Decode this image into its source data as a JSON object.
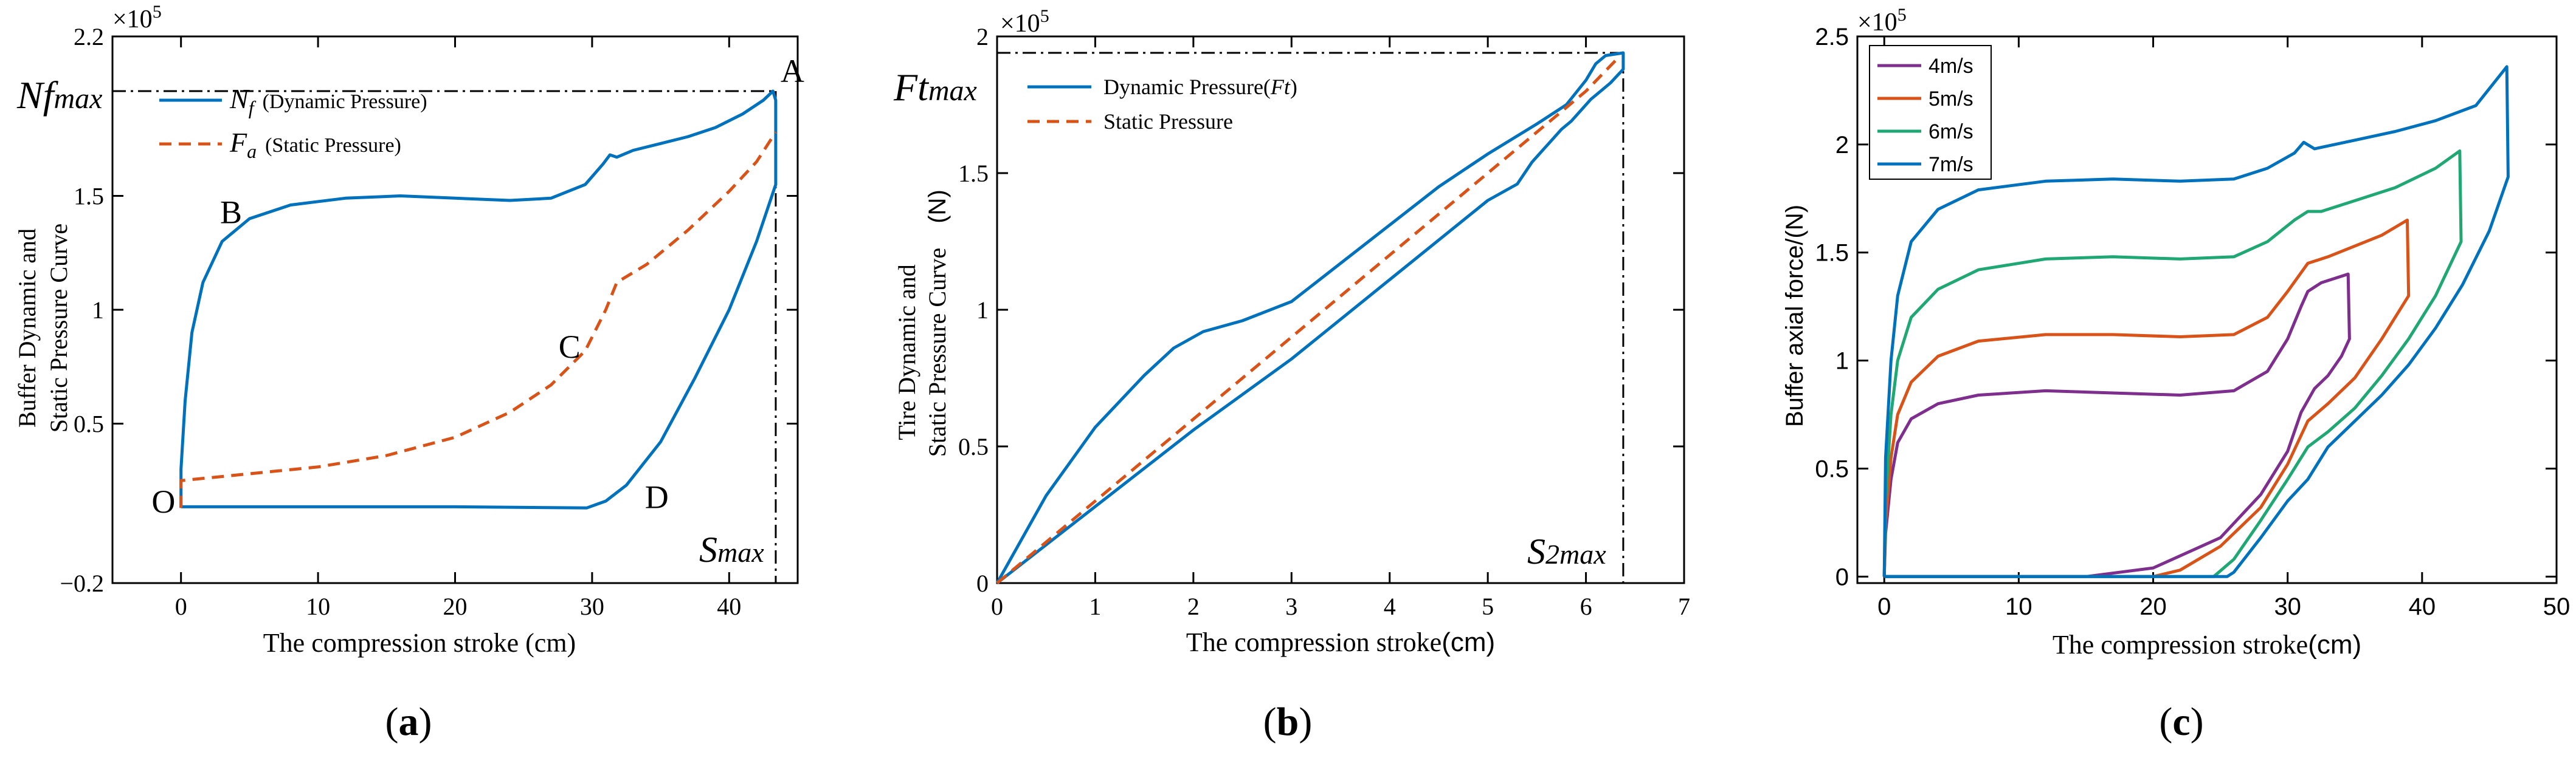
{
  "chart_data": [
    {
      "id": "a",
      "type": "line",
      "panel_label": "a",
      "xlabel": "The compression stroke (cm)",
      "ylabel_line1": "Buffer Dynamic and",
      "ylabel_line2": "Static Pressure Curve",
      "y_exponent": "×10",
      "y_exponent_power": "5",
      "xlim": [
        -5,
        45
      ],
      "ylim": [
        -0.2,
        2.2
      ],
      "xticks": [
        0,
        10,
        20,
        30,
        40
      ],
      "xtick_labels": [
        "0",
        "10",
        "20",
        "30",
        "40"
      ],
      "yticks": [
        -0.2,
        0.5,
        1,
        1.5,
        2.2
      ],
      "ytick_labels": [
        "−0.2",
        "0.5",
        "1",
        "1.5",
        "2.2"
      ],
      "series": [
        {
          "name": "N_f (Dynamic Pressure)",
          "legend_symbol": "N",
          "legend_sub": "f",
          "legend_text": "(Dynamic Pressure)",
          "color": "#0072BD",
          "dash": "solid",
          "points": [
            [
              0,
              0.13
            ],
            [
              0,
              0.3
            ],
            [
              0.3,
              0.6
            ],
            [
              0.8,
              0.9
            ],
            [
              1.6,
              1.12
            ],
            [
              3,
              1.3
            ],
            [
              5,
              1.4
            ],
            [
              8,
              1.46
            ],
            [
              12,
              1.49
            ],
            [
              16,
              1.5
            ],
            [
              20,
              1.49
            ],
            [
              24,
              1.48
            ],
            [
              27,
              1.49
            ],
            [
              29.5,
              1.55
            ],
            [
              30.8,
              1.64
            ],
            [
              31.3,
              1.68
            ],
            [
              31.8,
              1.67
            ],
            [
              33,
              1.7
            ],
            [
              35,
              1.73
            ],
            [
              37,
              1.76
            ],
            [
              39,
              1.8
            ],
            [
              41,
              1.86
            ],
            [
              42.5,
              1.92
            ],
            [
              43.2,
              1.96
            ],
            [
              43.4,
              1.92
            ],
            [
              43.4,
              1.55
            ],
            [
              42,
              1.3
            ],
            [
              40,
              1.0
            ],
            [
              37.5,
              0.7
            ],
            [
              35,
              0.42
            ],
            [
              32.5,
              0.23
            ],
            [
              31,
              0.16
            ],
            [
              29.6,
              0.13
            ],
            [
              20,
              0.135
            ],
            [
              10,
              0.135
            ],
            [
              0,
              0.135
            ]
          ]
        },
        {
          "name": "F_a (Static Pressure)",
          "legend_symbol": "F",
          "legend_sub": "a",
          "legend_text": "(Static Pressure)",
          "color": "#D95319",
          "dash": "dashed",
          "points": [
            [
              0,
              0.13
            ],
            [
              0,
              0.25
            ],
            [
              5,
              0.28
            ],
            [
              10,
              0.31
            ],
            [
              15,
              0.36
            ],
            [
              20,
              0.44
            ],
            [
              24,
              0.55
            ],
            [
              27,
              0.67
            ],
            [
              29.5,
              0.82
            ],
            [
              31,
              1.0
            ],
            [
              31.8,
              1.12
            ],
            [
              34,
              1.2
            ],
            [
              37,
              1.35
            ],
            [
              40,
              1.52
            ],
            [
              42,
              1.65
            ],
            [
              43.4,
              1.78
            ]
          ]
        }
      ],
      "annotations": [
        {
          "text": "A",
          "x": 43.4,
          "y": 2.0
        },
        {
          "text": "B",
          "x": 2.5,
          "y": 1.38
        },
        {
          "text": "C",
          "x": 27.2,
          "y": 0.79
        },
        {
          "text": "D",
          "x": 33.5,
          "y": 0.13
        },
        {
          "text": "O",
          "x": -2.5,
          "y": 0.11
        }
      ],
      "ref_y_label": "Nf",
      "ref_y_label_sub": "max",
      "ref_y_value": 1.96,
      "ref_x_label": "S",
      "ref_x_label_sub": "max",
      "ref_x_value": 43.4
    },
    {
      "id": "b",
      "type": "line",
      "panel_label": "b",
      "xlabel": "The compression stroke",
      "xlabel_unit": "(cm)",
      "ylabel_line1": "Tire Dynamic and",
      "ylabel_line2": "Static Pressure Curve",
      "ylabel_unit": "(N)",
      "y_exponent": "×10",
      "y_exponent_power": "5",
      "xlim": [
        0,
        7
      ],
      "ylim": [
        0,
        2
      ],
      "xticks": [
        0,
        1,
        2,
        3,
        4,
        5,
        6,
        7
      ],
      "xtick_labels": [
        "0",
        "1",
        "2",
        "3",
        "4",
        "5",
        "6",
        "7"
      ],
      "yticks": [
        0,
        0.5,
        1,
        1.5,
        2
      ],
      "ytick_labels": [
        "0",
        "0.5",
        "1",
        "1.5",
        "2"
      ],
      "series": [
        {
          "name": "Dynamic Pressure(Ft)",
          "legend_text": "Dynamic Pressure(",
          "legend_symbol": "Ft",
          "legend_close": ")",
          "color": "#0072BD",
          "dash": "solid",
          "points": [
            [
              0,
              0
            ],
            [
              0.5,
              0.32
            ],
            [
              1,
              0.57
            ],
            [
              1.5,
              0.76
            ],
            [
              1.8,
              0.86
            ],
            [
              2.1,
              0.92
            ],
            [
              2.5,
              0.96
            ],
            [
              3,
              1.03
            ],
            [
              3.5,
              1.17
            ],
            [
              4,
              1.31
            ],
            [
              4.5,
              1.45
            ],
            [
              5,
              1.57
            ],
            [
              5.5,
              1.68
            ],
            [
              5.8,
              1.75
            ],
            [
              6,
              1.84
            ],
            [
              6.1,
              1.9
            ],
            [
              6.2,
              1.93
            ],
            [
              6.38,
              1.94
            ],
            [
              6.38,
              1.88
            ],
            [
              6.25,
              1.83
            ],
            [
              6.15,
              1.8
            ],
            [
              6.05,
              1.77
            ],
            [
              5.95,
              1.73
            ],
            [
              5.85,
              1.69
            ],
            [
              5.75,
              1.66
            ],
            [
              5.65,
              1.62
            ],
            [
              5.55,
              1.58
            ],
            [
              5.45,
              1.54
            ],
            [
              5.3,
              1.46
            ],
            [
              5.1,
              1.42
            ],
            [
              5,
              1.4
            ],
            [
              4,
              1.11
            ],
            [
              3,
              0.82
            ],
            [
              2,
              0.56
            ],
            [
              1,
              0.28
            ],
            [
              0,
              0
            ]
          ]
        },
        {
          "name": "Static Pressure",
          "legend_text": "Static Pressure",
          "color": "#D95319",
          "dash": "dashed",
          "points": [
            [
              0,
              0
            ],
            [
              1,
              0.3
            ],
            [
              2,
              0.6
            ],
            [
              3,
              0.9
            ],
            [
              4,
              1.2
            ],
            [
              5,
              1.5
            ],
            [
              6,
              1.8
            ],
            [
              6.35,
              1.93
            ]
          ]
        }
      ],
      "ref_y_label": "Ft",
      "ref_y_label_sub": "max",
      "ref_y_value": 1.94,
      "ref_x_label": "S",
      "ref_x_label_sub": "2max",
      "ref_x_value": 6.38
    },
    {
      "id": "c",
      "type": "line",
      "panel_label": "c",
      "xlabel": "The compression stroke",
      "xlabel_unit": "(cm)",
      "ylabel": "Buffer axial force/(N)",
      "y_exponent": "×10",
      "y_exponent_power": "5",
      "xlim": [
        -2,
        50
      ],
      "ylim": [
        -0.03,
        2.5
      ],
      "xticks": [
        0,
        10,
        20,
        30,
        40,
        50
      ],
      "xtick_labels": [
        "0",
        "10",
        "20",
        "30",
        "40",
        "50"
      ],
      "yticks": [
        0,
        0.5,
        1,
        1.5,
        2,
        2.5
      ],
      "ytick_labels": [
        "0",
        "0.5",
        "1",
        "1.5",
        "2",
        "2.5"
      ],
      "series": [
        {
          "name": "4m/s",
          "color": "#7E2F8E",
          "points": [
            [
              0,
              0
            ],
            [
              0.1,
              0.2
            ],
            [
              0.5,
              0.45
            ],
            [
              1,
              0.62
            ],
            [
              2,
              0.73
            ],
            [
              4,
              0.8
            ],
            [
              7,
              0.84
            ],
            [
              12,
              0.86
            ],
            [
              17,
              0.85
            ],
            [
              22,
              0.84
            ],
            [
              26,
              0.86
            ],
            [
              28.5,
              0.95
            ],
            [
              30,
              1.1
            ],
            [
              31,
              1.25
            ],
            [
              31.5,
              1.32
            ],
            [
              32.5,
              1.36
            ],
            [
              33.5,
              1.38
            ],
            [
              34.5,
              1.4
            ],
            [
              34.6,
              1.1
            ],
            [
              34,
              1.02
            ],
            [
              33,
              0.93
            ],
            [
              32,
              0.87
            ],
            [
              31,
              0.76
            ],
            [
              30,
              0.58
            ],
            [
              28,
              0.38
            ],
            [
              25,
              0.18
            ],
            [
              20,
              0.04
            ],
            [
              15,
              0.0
            ],
            [
              0,
              0
            ]
          ]
        },
        {
          "name": "5m/s",
          "color": "#D95319",
          "points": [
            [
              0,
              0
            ],
            [
              0.1,
              0.25
            ],
            [
              0.5,
              0.55
            ],
            [
              1,
              0.75
            ],
            [
              2,
              0.9
            ],
            [
              4,
              1.02
            ],
            [
              7,
              1.09
            ],
            [
              12,
              1.12
            ],
            [
              17,
              1.12
            ],
            [
              22,
              1.11
            ],
            [
              26,
              1.12
            ],
            [
              28.5,
              1.2
            ],
            [
              30,
              1.32
            ],
            [
              31.5,
              1.45
            ],
            [
              33,
              1.48
            ],
            [
              35,
              1.53
            ],
            [
              37,
              1.58
            ],
            [
              38.9,
              1.65
            ],
            [
              39,
              1.3
            ],
            [
              37,
              1.1
            ],
            [
              35,
              0.92
            ],
            [
              33,
              0.8
            ],
            [
              31.5,
              0.72
            ],
            [
              30,
              0.52
            ],
            [
              28,
              0.32
            ],
            [
              25,
              0.14
            ],
            [
              22,
              0.03
            ],
            [
              20,
              0
            ],
            [
              0,
              0
            ]
          ]
        },
        {
          "name": "6m/s",
          "color": "#1FA774",
          "points": [
            [
              0,
              0
            ],
            [
              0.1,
              0.35
            ],
            [
              0.5,
              0.75
            ],
            [
              1,
              1.0
            ],
            [
              2,
              1.2
            ],
            [
              4,
              1.33
            ],
            [
              7,
              1.42
            ],
            [
              12,
              1.47
            ],
            [
              17,
              1.48
            ],
            [
              22,
              1.47
            ],
            [
              26,
              1.48
            ],
            [
              28.5,
              1.55
            ],
            [
              30.5,
              1.65
            ],
            [
              31.5,
              1.69
            ],
            [
              32.5,
              1.69
            ],
            [
              35,
              1.74
            ],
            [
              38,
              1.8
            ],
            [
              41,
              1.89
            ],
            [
              42.8,
              1.97
            ],
            [
              42.9,
              1.55
            ],
            [
              41,
              1.3
            ],
            [
              39,
              1.1
            ],
            [
              37,
              0.93
            ],
            [
              35,
              0.78
            ],
            [
              33,
              0.67
            ],
            [
              31.5,
              0.6
            ],
            [
              30,
              0.45
            ],
            [
              28,
              0.26
            ],
            [
              26,
              0.08
            ],
            [
              24.5,
              0
            ],
            [
              0,
              0
            ]
          ]
        },
        {
          "name": "7m/s",
          "color": "#0072BD",
          "points": [
            [
              0,
              0
            ],
            [
              0.1,
              0.55
            ],
            [
              0.5,
              1.0
            ],
            [
              1,
              1.3
            ],
            [
              2,
              1.55
            ],
            [
              4,
              1.7
            ],
            [
              7,
              1.79
            ],
            [
              12,
              1.83
            ],
            [
              17,
              1.84
            ],
            [
              22,
              1.83
            ],
            [
              26,
              1.84
            ],
            [
              28.5,
              1.89
            ],
            [
              30.5,
              1.96
            ],
            [
              31.2,
              2.01
            ],
            [
              32,
              1.98
            ],
            [
              35,
              2.02
            ],
            [
              38,
              2.06
            ],
            [
              41,
              2.11
            ],
            [
              44,
              2.18
            ],
            [
              46.3,
              2.36
            ],
            [
              46.4,
              1.85
            ],
            [
              45,
              1.6
            ],
            [
              43,
              1.35
            ],
            [
              41,
              1.15
            ],
            [
              39,
              0.98
            ],
            [
              37,
              0.84
            ],
            [
              35,
              0.72
            ],
            [
              33,
              0.6
            ],
            [
              31.5,
              0.45
            ],
            [
              30,
              0.35
            ],
            [
              28,
              0.18
            ],
            [
              26,
              0.02
            ],
            [
              25.5,
              0
            ],
            [
              0,
              0
            ]
          ]
        }
      ]
    }
  ]
}
